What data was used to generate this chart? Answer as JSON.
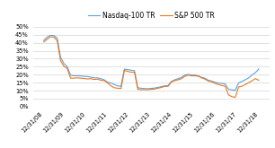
{
  "title": "",
  "legend": [
    "Nasdaq-100 TR",
    "S&P 500 TR"
  ],
  "colors": [
    "#5ba3d9",
    "#e87722"
  ],
  "x_labels": [
    "12/31/08",
    "12/31/09",
    "12/31/10",
    "12/31/11",
    "12/31/12",
    "12/31/13",
    "12/31/14",
    "12/31/15",
    "12/31/16",
    "12/31/17",
    "12/31/18"
  ],
  "ylim": [
    0.0,
    0.52
  ],
  "yticks": [
    0.0,
    0.05,
    0.1,
    0.15,
    0.2,
    0.25,
    0.3,
    0.35,
    0.4,
    0.45,
    0.5
  ],
  "nasdaq_data": [
    0.415,
    0.435,
    0.447,
    0.445,
    0.43,
    0.31,
    0.27,
    0.25,
    0.197,
    0.193,
    0.193,
    0.192,
    0.19,
    0.188,
    0.185,
    0.18,
    0.18,
    0.175,
    0.168,
    0.153,
    0.148,
    0.138,
    0.13,
    0.127,
    0.235,
    0.232,
    0.228,
    0.225,
    0.118,
    0.115,
    0.113,
    0.112,
    0.114,
    0.116,
    0.12,
    0.125,
    0.13,
    0.132,
    0.158,
    0.168,
    0.175,
    0.183,
    0.198,
    0.202,
    0.198,
    0.198,
    0.193,
    0.183,
    0.178,
    0.165,
    0.16,
    0.152,
    0.148,
    0.145,
    0.142,
    0.108,
    0.105,
    0.102,
    0.148,
    0.158,
    0.168,
    0.18,
    0.198,
    0.213,
    0.235
  ],
  "sp500_data": [
    0.405,
    0.423,
    0.438,
    0.436,
    0.413,
    0.288,
    0.253,
    0.238,
    0.178,
    0.178,
    0.18,
    0.178,
    0.176,
    0.173,
    0.175,
    0.17,
    0.172,
    0.165,
    0.163,
    0.148,
    0.13,
    0.118,
    0.115,
    0.113,
    0.228,
    0.22,
    0.216,
    0.215,
    0.108,
    0.106,
    0.106,
    0.106,
    0.108,
    0.11,
    0.115,
    0.12,
    0.126,
    0.127,
    0.154,
    0.163,
    0.168,
    0.175,
    0.19,
    0.197,
    0.193,
    0.193,
    0.19,
    0.18,
    0.172,
    0.16,
    0.155,
    0.145,
    0.138,
    0.132,
    0.128,
    0.073,
    0.062,
    0.058,
    0.123,
    0.128,
    0.138,
    0.15,
    0.162,
    0.175,
    0.165
  ],
  "background_color": "#ffffff",
  "grid_color": "#d4d4d4",
  "tick_fontsize": 4.8,
  "legend_fontsize": 5.5
}
